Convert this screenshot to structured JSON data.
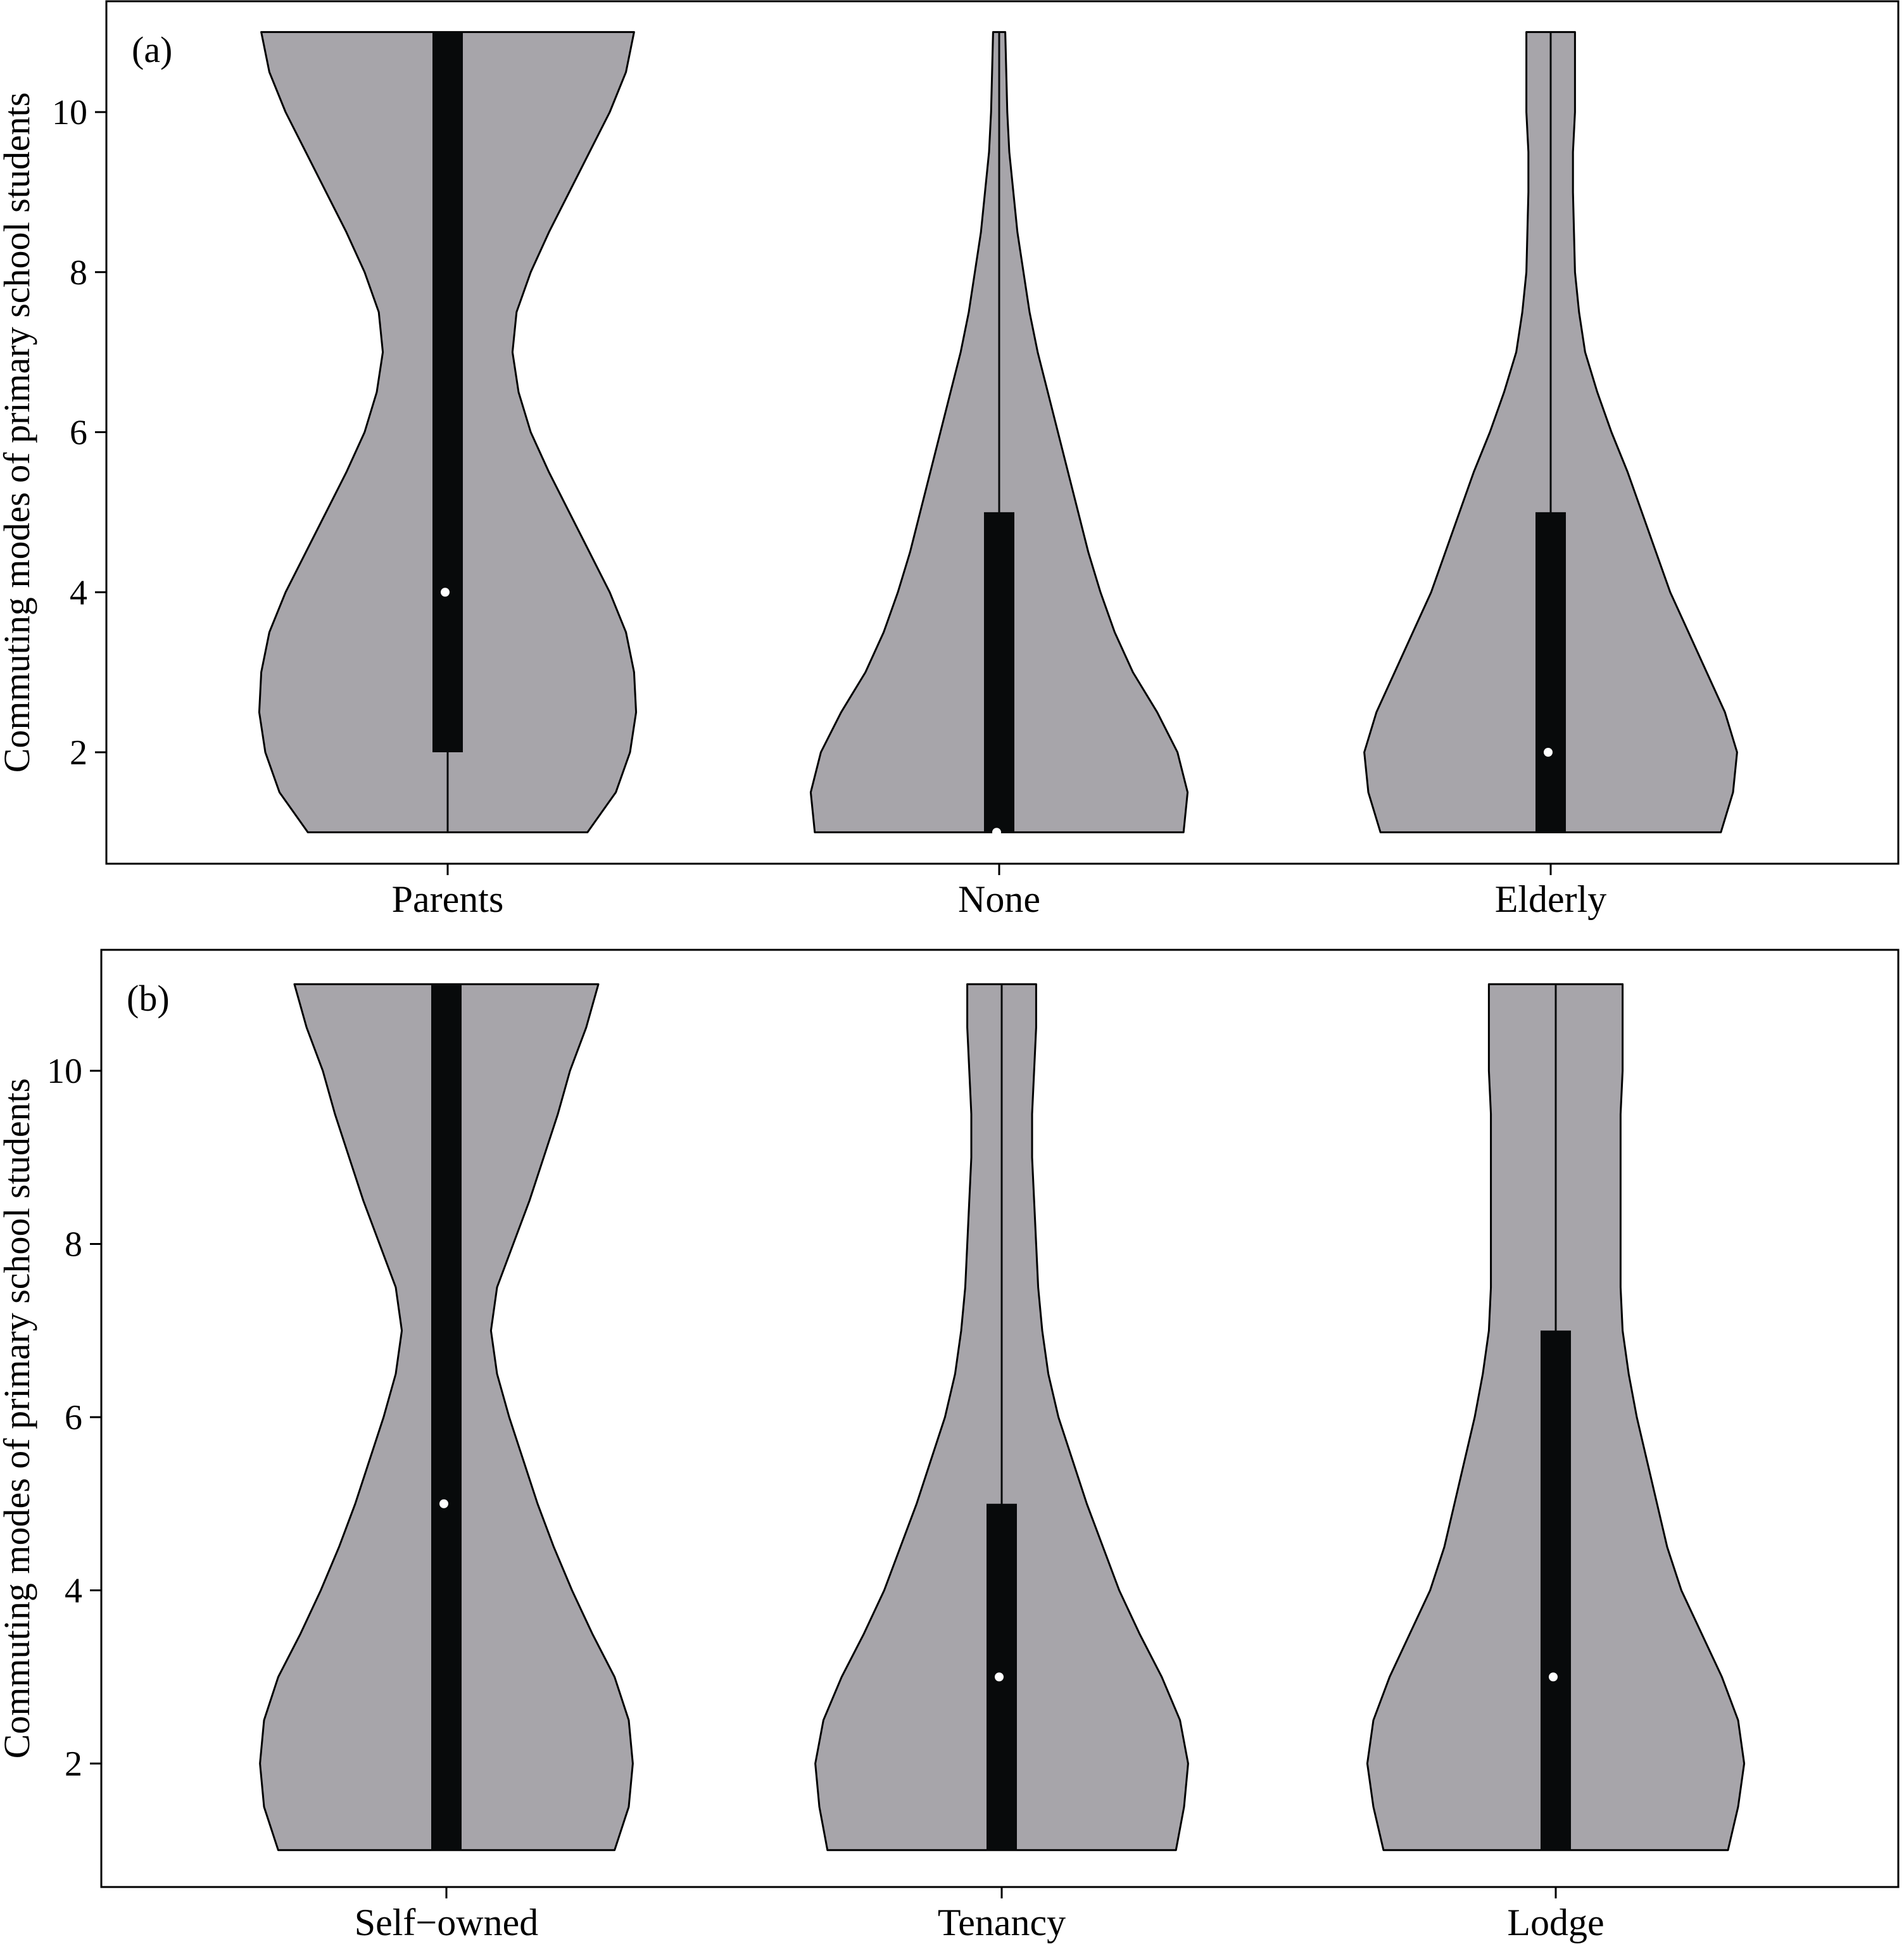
{
  "chart_data": [
    {
      "type": "violin",
      "panel_label": "(a)",
      "ylabel": "Commuting modes of primary school students",
      "ylim": [
        1,
        11
      ],
      "yticks": [
        2,
        4,
        6,
        8,
        10
      ],
      "grid": false,
      "legend": "none",
      "colors": {
        "violin_fill": "#a7a5aa",
        "box_fill": "#080a0b",
        "median": "#ffffff",
        "outline": "#000000"
      },
      "categories": [
        "Parents",
        "None",
        "Elderly"
      ],
      "violins": [
        {
          "category": "Parents",
          "min": 1,
          "q1": 2,
          "median": 4,
          "q3": 11,
          "max": 11,
          "density": [
            [
              1,
              0.69
            ],
            [
              1.5,
              0.83
            ],
            [
              2,
              0.9
            ],
            [
              2.5,
              0.93
            ],
            [
              3,
              0.92
            ],
            [
              3.5,
              0.88
            ],
            [
              4,
              0.8
            ],
            [
              4.5,
              0.7
            ],
            [
              5,
              0.6
            ],
            [
              5.5,
              0.5
            ],
            [
              6,
              0.41
            ],
            [
              6.5,
              0.35
            ],
            [
              7,
              0.32
            ],
            [
              7.5,
              0.34
            ],
            [
              8,
              0.41
            ],
            [
              8.5,
              0.5
            ],
            [
              9,
              0.6
            ],
            [
              9.5,
              0.7
            ],
            [
              10,
              0.8
            ],
            [
              10.5,
              0.88
            ],
            [
              11,
              0.92
            ]
          ]
        },
        {
          "category": "None",
          "min": 1,
          "q1": 1,
          "median": 1,
          "q3": 5,
          "max": 11,
          "density": [
            [
              1,
              0.91
            ],
            [
              1.5,
              0.93
            ],
            [
              2,
              0.88
            ],
            [
              2.5,
              0.78
            ],
            [
              3,
              0.66
            ],
            [
              3.5,
              0.57
            ],
            [
              4,
              0.5
            ],
            [
              4.5,
              0.44
            ],
            [
              5,
              0.39
            ],
            [
              5.5,
              0.34
            ],
            [
              6,
              0.29
            ],
            [
              6.5,
              0.24
            ],
            [
              7,
              0.19
            ],
            [
              7.5,
              0.15
            ],
            [
              8,
              0.12
            ],
            [
              8.5,
              0.09
            ],
            [
              9,
              0.07
            ],
            [
              9.5,
              0.05
            ],
            [
              10,
              0.04
            ],
            [
              10.5,
              0.035
            ],
            [
              11,
              0.03
            ]
          ]
        },
        {
          "category": "Elderly",
          "min": 1,
          "q1": 1,
          "median": 2,
          "q3": 5,
          "max": 11,
          "density": [
            [
              1,
              0.84
            ],
            [
              1.5,
              0.9
            ],
            [
              2,
              0.92
            ],
            [
              2.5,
              0.86
            ],
            [
              3,
              0.77
            ],
            [
              3.5,
              0.68
            ],
            [
              4,
              0.59
            ],
            [
              4.5,
              0.52
            ],
            [
              5,
              0.45
            ],
            [
              5.5,
              0.38
            ],
            [
              6,
              0.3
            ],
            [
              6.5,
              0.23
            ],
            [
              7,
              0.17
            ],
            [
              7.5,
              0.14
            ],
            [
              8,
              0.12
            ],
            [
              8.5,
              0.115
            ],
            [
              9,
              0.11
            ],
            [
              9.5,
              0.11
            ],
            [
              10,
              0.12
            ],
            [
              10.5,
              0.12
            ],
            [
              11,
              0.12
            ]
          ]
        }
      ]
    },
    {
      "type": "violin",
      "panel_label": "(b)",
      "ylabel": "Commuting modes of primary school students",
      "ylim": [
        1,
        11
      ],
      "yticks": [
        2,
        4,
        6,
        8,
        10
      ],
      "grid": false,
      "legend": "none",
      "colors": {
        "violin_fill": "#a7a5aa",
        "box_fill": "#080a0b",
        "median": "#ffffff",
        "outline": "#000000"
      },
      "categories": [
        "Self−owned",
        "Tenancy",
        "Lodge"
      ],
      "violins": [
        {
          "category": "Self−owned",
          "min": 1,
          "q1": 1,
          "median": 5,
          "q3": 11,
          "max": 11,
          "density": [
            [
              1,
              0.83
            ],
            [
              1.5,
              0.9
            ],
            [
              2,
              0.92
            ],
            [
              2.5,
              0.9
            ],
            [
              3,
              0.83
            ],
            [
              3.5,
              0.72
            ],
            [
              4,
              0.62
            ],
            [
              4.5,
              0.53
            ],
            [
              5,
              0.45
            ],
            [
              5.5,
              0.38
            ],
            [
              6,
              0.31
            ],
            [
              6.5,
              0.25
            ],
            [
              7,
              0.22
            ],
            [
              7.5,
              0.25
            ],
            [
              8,
              0.33
            ],
            [
              8.5,
              0.41
            ],
            [
              9,
              0.48
            ],
            [
              9.5,
              0.55
            ],
            [
              10,
              0.61
            ],
            [
              10.5,
              0.69
            ],
            [
              11,
              0.75
            ]
          ]
        },
        {
          "category": "Tenancy",
          "min": 1,
          "q1": 1,
          "median": 3,
          "q3": 5,
          "max": 11,
          "density": [
            [
              1,
              0.86
            ],
            [
              1.5,
              0.9
            ],
            [
              2,
              0.92
            ],
            [
              2.5,
              0.88
            ],
            [
              3,
              0.79
            ],
            [
              3.5,
              0.68
            ],
            [
              4,
              0.58
            ],
            [
              4.5,
              0.5
            ],
            [
              5,
              0.42
            ],
            [
              5.5,
              0.35
            ],
            [
              6,
              0.28
            ],
            [
              6.5,
              0.23
            ],
            [
              7,
              0.2
            ],
            [
              7.5,
              0.18
            ],
            [
              8,
              0.17
            ],
            [
              8.5,
              0.16
            ],
            [
              9,
              0.15
            ],
            [
              9.5,
              0.15
            ],
            [
              10,
              0.16
            ],
            [
              10.5,
              0.17
            ],
            [
              11,
              0.17
            ]
          ]
        },
        {
          "category": "Lodge",
          "min": 1,
          "q1": 1,
          "median": 3,
          "q3": 7,
          "max": 11,
          "density": [
            [
              1,
              0.85
            ],
            [
              1.5,
              0.9
            ],
            [
              2,
              0.93
            ],
            [
              2.5,
              0.9
            ],
            [
              3,
              0.82
            ],
            [
              3.5,
              0.72
            ],
            [
              4,
              0.62
            ],
            [
              4.5,
              0.55
            ],
            [
              5,
              0.5
            ],
            [
              5.5,
              0.45
            ],
            [
              6,
              0.4
            ],
            [
              6.5,
              0.36
            ],
            [
              7,
              0.33
            ],
            [
              7.5,
              0.32
            ],
            [
              8,
              0.32
            ],
            [
              8.5,
              0.32
            ],
            [
              9,
              0.32
            ],
            [
              9.5,
              0.32
            ],
            [
              10,
              0.33
            ],
            [
              10.5,
              0.33
            ],
            [
              11,
              0.33
            ]
          ]
        }
      ]
    }
  ]
}
